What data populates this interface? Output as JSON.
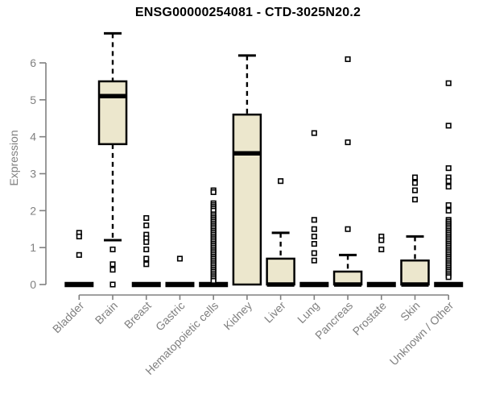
{
  "chart_data": {
    "type": "boxplot",
    "title": "ENSG00000254081 - CTD-3025N20.2",
    "ylabel": "Expression",
    "xlabel": "",
    "ylim": [
      0,
      6.9
    ],
    "yticks": [
      0,
      1,
      2,
      3,
      4,
      5,
      6
    ],
    "grid": false,
    "legend": false,
    "box_fill_color": "#ece7cd",
    "box_stroke_color": "#000000",
    "axis_color": "#808080",
    "outlier_fill_color": "#ffffff",
    "categories": [
      "Bladder",
      "Brain",
      "Breast",
      "Gastric",
      "Hematopoietic cells",
      "Kidney",
      "Liver",
      "Lung",
      "Pancreas",
      "Prostate",
      "Skin",
      "Unknown / Other"
    ],
    "boxes": [
      {
        "category": "Bladder",
        "min": 0,
        "q1": 0,
        "median": 0,
        "q3": 0,
        "max": 0,
        "outliers": [
          1.4,
          1.3,
          0.8
        ]
      },
      {
        "category": "Brain",
        "min": 1.2,
        "q1": 3.8,
        "median": 5.1,
        "q3": 5.5,
        "max": 6.8,
        "outliers": [
          0.95,
          0.55,
          0.4,
          0
        ]
      },
      {
        "category": "Breast",
        "min": 0,
        "q1": 0,
        "median": 0,
        "q3": 0,
        "max": 0,
        "outliers": [
          1.8,
          1.6,
          1.35,
          1.25,
          1.15,
          0.95,
          0.7,
          0.55
        ]
      },
      {
        "category": "Gastric",
        "min": 0,
        "q1": 0,
        "median": 0,
        "q3": 0,
        "max": 0,
        "outliers": [
          0.7
        ]
      },
      {
        "category": "Hematopoietic cells",
        "min": 0,
        "q1": 0,
        "median": 0,
        "q3": 0,
        "max": 0,
        "outliers": [
          2.55,
          2.5,
          2.2,
          2.15,
          2.1,
          2.05,
          2.0,
          1.9,
          1.85,
          1.8,
          1.75,
          1.7,
          1.65,
          1.6,
          1.55,
          1.5,
          1.45,
          1.4,
          1.35,
          1.3,
          1.25,
          1.2,
          1.15,
          1.1,
          1.05,
          1.0,
          0.95,
          0.9,
          0.85,
          0.8,
          0.75,
          0.7,
          0.65,
          0.6,
          0.55,
          0.5,
          0.45,
          0.4,
          0.35,
          0.3,
          0.25,
          0.2,
          0.15,
          0.1
        ]
      },
      {
        "category": "Kidney",
        "min": 0,
        "q1": 0,
        "median": 3.55,
        "q3": 4.6,
        "max": 6.2,
        "outliers": []
      },
      {
        "category": "Liver",
        "min": 0,
        "q1": 0,
        "median": 0,
        "q3": 0.7,
        "max": 1.4,
        "outliers": [
          2.8
        ]
      },
      {
        "category": "Lung",
        "min": 0,
        "q1": 0,
        "median": 0,
        "q3": 0,
        "max": 0,
        "outliers": [
          4.1,
          1.75,
          1.5,
          1.3,
          1.1,
          0.85,
          0.65
        ]
      },
      {
        "category": "Pancreas",
        "min": 0,
        "q1": 0,
        "median": 0,
        "q3": 0.35,
        "max": 0.8,
        "outliers": [
          6.1,
          3.85,
          1.5
        ]
      },
      {
        "category": "Prostate",
        "min": 0,
        "q1": 0,
        "median": 0,
        "q3": 0,
        "max": 0,
        "outliers": [
          1.3,
          1.2,
          0.95
        ]
      },
      {
        "category": "Skin",
        "min": 0,
        "q1": 0,
        "median": 0,
        "q3": 0.65,
        "max": 1.3,
        "outliers": [
          2.9,
          2.75,
          2.55,
          2.3
        ]
      },
      {
        "category": "Unknown / Other",
        "min": 0,
        "q1": 0,
        "median": 0,
        "q3": 0,
        "max": 0,
        "outliers": [
          5.45,
          4.3,
          3.15,
          2.9,
          2.8,
          2.65,
          2.15,
          2.0,
          1.75,
          1.7,
          1.65,
          1.6,
          1.55,
          1.5,
          1.45,
          1.4,
          1.35,
          1.3,
          1.25,
          1.2,
          1.15,
          1.1,
          1.05,
          1.0,
          0.95,
          0.9,
          0.85,
          0.8,
          0.75,
          0.7,
          0.65,
          0.6,
          0.55,
          0.5,
          0.45,
          0.4,
          0.35,
          0.3,
          0.25,
          0.2
        ]
      }
    ]
  }
}
